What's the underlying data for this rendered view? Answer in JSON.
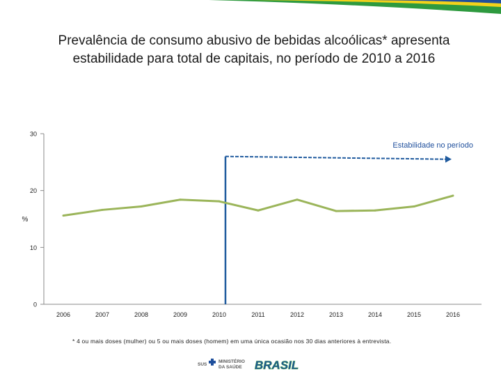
{
  "title": "Prevalência de consumo abusivo de bebidas alcoólicas* apresenta estabilidade para total de capitais, no período de 2010 a 2016",
  "footnote": "* 4 ou mais doses (mulher) ou 5 ou mais doses (homem) em uma única ocasião nos 30 dias anteriores à entrevista.",
  "footer": {
    "sus_label": "SUS",
    "ministry_line1": "MINISTÉRIO",
    "ministry_line2": "DA SAÚDE",
    "brand": "BRASIL"
  },
  "colors": {
    "line": "#9bb55a",
    "marker": "#1f5a9e",
    "band_green": "#2e9a3f",
    "band_yellow": "#f3d21b",
    "band_blue": "#1f4f9c"
  },
  "chart_data": {
    "type": "line",
    "title": "Prevalência de consumo abusivo de bebidas alcoólicas",
    "xlabel": "",
    "ylabel": "%",
    "categories": [
      "2006",
      "2007",
      "2008",
      "2009",
      "2010",
      "2011",
      "2012",
      "2013",
      "2014",
      "2015",
      "2016"
    ],
    "yticks": [
      0,
      10,
      20,
      30
    ],
    "ylim": [
      0,
      30
    ],
    "series": [
      {
        "name": "Total de capitais",
        "values": [
          15.6,
          16.6,
          17.2,
          18.4,
          18.1,
          16.5,
          18.4,
          16.4,
          16.5,
          17.2,
          19.1
        ]
      }
    ],
    "annotation": {
      "text": "Estabilidade no período",
      "from": "2010",
      "to": "2016",
      "level": 26
    }
  }
}
